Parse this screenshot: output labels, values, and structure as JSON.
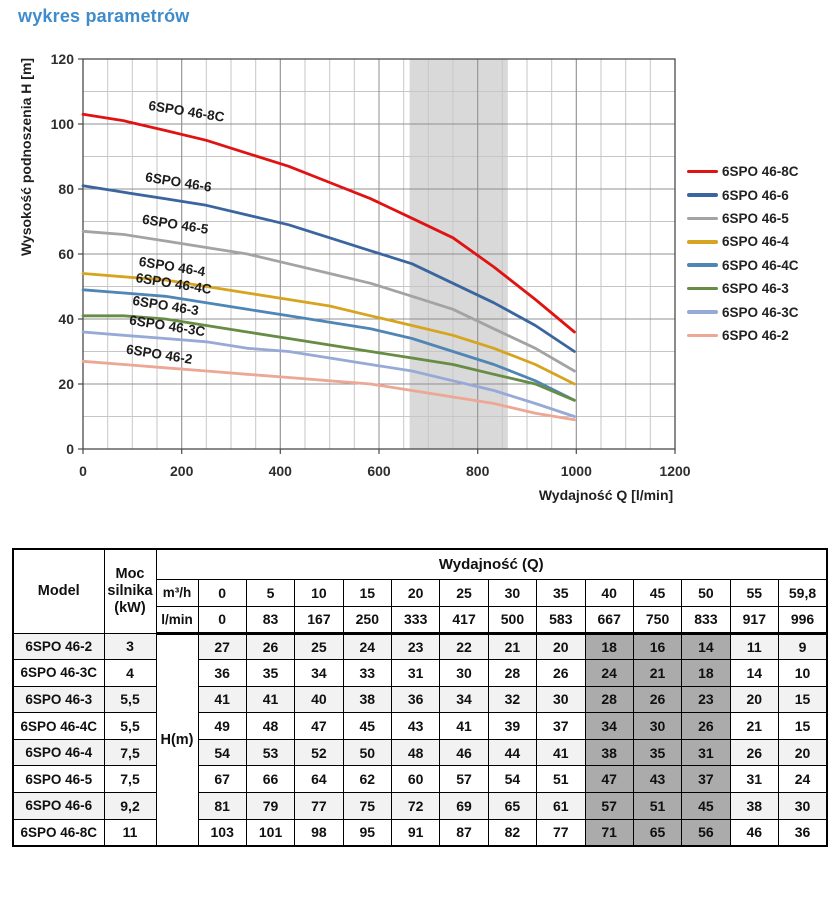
{
  "page": {
    "title": "wykres parametrów"
  },
  "colors": {
    "title_accent": "#3E8CCB",
    "band": "#D9D9D9",
    "grid_minor": "#C6C6C6",
    "grid_major": "#909090",
    "plot_border": "#4A4A4A",
    "table_row_alt": "#F2F2F2",
    "table_highlight": "#ABABAB"
  },
  "chart_data": {
    "type": "line",
    "title": "",
    "xlabel": "Wydajność Q [l/min]",
    "ylabel": "Wysokość podnoszenia H [m]",
    "xlim": [
      0,
      1200
    ],
    "ylim": [
      0,
      120
    ],
    "x_major_ticks": [
      0,
      200,
      400,
      600,
      800,
      1000,
      1200
    ],
    "y_major_ticks": [
      0,
      20,
      40,
      60,
      80,
      100,
      120
    ],
    "x_minor_step": 50,
    "y_minor_step": 10,
    "grid": true,
    "legend_position": "right",
    "band": {
      "from": 662,
      "to": 861
    },
    "x": [
      0,
      83,
      167,
      250,
      333,
      417,
      500,
      583,
      667,
      750,
      833,
      917,
      996
    ],
    "series": [
      {
        "name": "6SPO 46-8C",
        "color": "#E01212",
        "values": [
          103,
          101,
          98,
          95,
          91,
          87,
          82,
          77,
          71,
          65,
          56,
          46,
          36
        ]
      },
      {
        "name": "6SPO 46-6",
        "color": "#3A659E",
        "values": [
          81,
          79,
          77,
          75,
          72,
          69,
          65,
          61,
          57,
          51,
          45,
          38,
          30
        ]
      },
      {
        "name": "6SPO 46-5",
        "color": "#A3A3A3",
        "values": [
          67,
          66,
          64,
          62,
          60,
          57,
          54,
          51,
          47,
          43,
          37,
          31,
          24
        ]
      },
      {
        "name": "6SPO 46-4",
        "color": "#D6A41F",
        "values": [
          54,
          53,
          52,
          50,
          48,
          46,
          44,
          41,
          38,
          35,
          31,
          26,
          20
        ]
      },
      {
        "name": "6SPO 46-4C",
        "color": "#4F86B5",
        "values": [
          49,
          48,
          47,
          45,
          43,
          41,
          39,
          37,
          34,
          30,
          26,
          21,
          15
        ]
      },
      {
        "name": "6SPO 46-3",
        "color": "#678C44",
        "values": [
          41,
          41,
          40,
          38,
          36,
          34,
          32,
          30,
          28,
          26,
          23,
          20,
          15
        ]
      },
      {
        "name": "6SPO 46-3C",
        "color": "#96A9D7",
        "values": [
          36,
          35,
          34,
          33,
          31,
          30,
          28,
          26,
          24,
          21,
          18,
          14,
          10
        ]
      },
      {
        "name": "6SPO 46-2",
        "color": "#ECA795",
        "values": [
          27,
          26,
          25,
          24,
          23,
          22,
          21,
          20,
          18,
          16,
          14,
          11,
          9
        ]
      }
    ]
  },
  "table": {
    "header": {
      "model": "Model",
      "power": "Moc silnika (kW)",
      "flow": "Wydajność (Q)",
      "unit_m3h": "m³/h",
      "unit_lmin": "l/min",
      "head_unit": "H(m)",
      "m3h_values": [
        "0",
        "5",
        "10",
        "15",
        "20",
        "25",
        "30",
        "35",
        "40",
        "45",
        "50",
        "55",
        "59,8"
      ],
      "lmin_values": [
        "0",
        "83",
        "167",
        "250",
        "333",
        "417",
        "500",
        "583",
        "667",
        "750",
        "833",
        "917",
        "996"
      ]
    },
    "highlight_columns": [
      8,
      9,
      10
    ],
    "rows": [
      {
        "model": "6SPO 46-2",
        "power": "3",
        "values": [
          "27",
          "26",
          "25",
          "24",
          "23",
          "22",
          "21",
          "20",
          "18",
          "16",
          "14",
          "11",
          "9"
        ]
      },
      {
        "model": "6SPO 46-3C",
        "power": "4",
        "values": [
          "36",
          "35",
          "34",
          "33",
          "31",
          "30",
          "28",
          "26",
          "24",
          "21",
          "18",
          "14",
          "10"
        ]
      },
      {
        "model": "6SPO 46-3",
        "power": "5,5",
        "values": [
          "41",
          "41",
          "40",
          "38",
          "36",
          "34",
          "32",
          "30",
          "28",
          "26",
          "23",
          "20",
          "15"
        ]
      },
      {
        "model": "6SPO 46-4C",
        "power": "5,5",
        "values": [
          "49",
          "48",
          "47",
          "45",
          "43",
          "41",
          "39",
          "37",
          "34",
          "30",
          "26",
          "21",
          "15"
        ]
      },
      {
        "model": "6SPO 46-4",
        "power": "7,5",
        "values": [
          "54",
          "53",
          "52",
          "50",
          "48",
          "46",
          "44",
          "41",
          "38",
          "35",
          "31",
          "26",
          "20"
        ]
      },
      {
        "model": "6SPO 46-5",
        "power": "7,5",
        "values": [
          "67",
          "66",
          "64",
          "62",
          "60",
          "57",
          "54",
          "51",
          "47",
          "43",
          "37",
          "31",
          "24"
        ]
      },
      {
        "model": "6SPO 46-6",
        "power": "9,2",
        "values": [
          "81",
          "79",
          "77",
          "75",
          "72",
          "69",
          "65",
          "61",
          "57",
          "51",
          "45",
          "38",
          "30"
        ]
      },
      {
        "model": "6SPO 46-8C",
        "power": "11",
        "values": [
          "103",
          "101",
          "98",
          "95",
          "91",
          "87",
          "82",
          "77",
          "71",
          "65",
          "56",
          "46",
          "36"
        ]
      }
    ]
  }
}
